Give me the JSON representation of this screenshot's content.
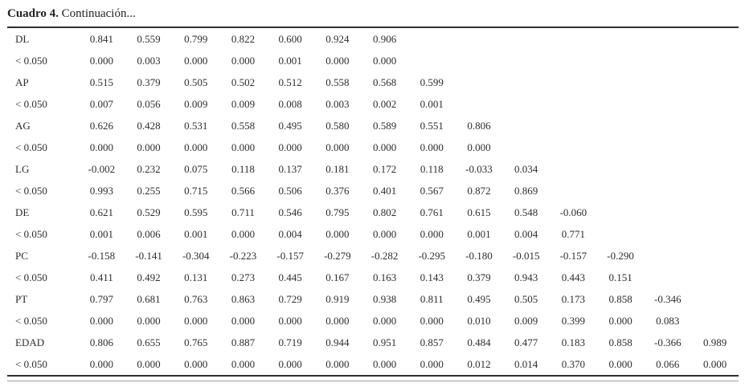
{
  "caption": {
    "bold": "Cuadro 4.",
    "rest": " Continuación..."
  },
  "table": {
    "column_count": 14,
    "rows": [
      {
        "label": "DL",
        "values": [
          "0.841",
          "0.559",
          "0.799",
          "0.822",
          "0.600",
          "0.924",
          "0.906"
        ]
      },
      {
        "label": "< 0.050",
        "values": [
          "0.000",
          "0.003",
          "0.000",
          "0.000",
          "0.001",
          "0.000",
          "0.000"
        ]
      },
      {
        "label": "AP",
        "values": [
          "0.515",
          "0.379",
          "0.505",
          "0.502",
          "0.512",
          "0.558",
          "0.568",
          "0.599"
        ]
      },
      {
        "label": "< 0.050",
        "values": [
          "0.007",
          "0.056",
          "0.009",
          "0.009",
          "0.008",
          "0.003",
          "0.002",
          "0.001"
        ]
      },
      {
        "label": "AG",
        "values": [
          "0.626",
          "0.428",
          "0.531",
          "0.558",
          "0.495",
          "0.580",
          "0.589",
          "0.551",
          "0.806"
        ]
      },
      {
        "label": "< 0.050",
        "values": [
          "0.000",
          "0.000",
          "0.000",
          "0.000",
          "0.000",
          "0.000",
          "0.000",
          "0.000",
          "0.000"
        ]
      },
      {
        "label": "LG",
        "values": [
          "-0.002",
          "0.232",
          "0.075",
          "0.118",
          "0.137",
          "0.181",
          "0.172",
          "0.118",
          "-0.033",
          "0.034"
        ]
      },
      {
        "label": "< 0.050",
        "values": [
          "0.993",
          "0.255",
          "0.715",
          "0.566",
          "0.506",
          "0.376",
          "0.401",
          "0.567",
          "0.872",
          "0.869"
        ]
      },
      {
        "label": "DE",
        "values": [
          "0.621",
          "0.529",
          "0.595",
          "0.711",
          "0.546",
          "0.795",
          "0.802",
          "0.761",
          "0.615",
          "0.548",
          "-0.060"
        ]
      },
      {
        "label": "< 0.050",
        "values": [
          "0.001",
          "0.006",
          "0.001",
          "0.000",
          "0.004",
          "0.000",
          "0.000",
          "0.000",
          "0.001",
          "0.004",
          "0.771"
        ]
      },
      {
        "label": "PC",
        "values": [
          "-0.158",
          "-0.141",
          "-0.304",
          "-0.223",
          "-0.157",
          "-0.279",
          "-0.282",
          "-0.295",
          "-0.180",
          "-0.015",
          "-0.157",
          "-0.290"
        ]
      },
      {
        "label": "< 0.050",
        "values": [
          "0.411",
          "0.492",
          "0.131",
          "0.273",
          "0.445",
          "0.167",
          "0.163",
          "0.143",
          "0.379",
          "0.943",
          "0.443",
          "0.151"
        ]
      },
      {
        "label": "PT",
        "values": [
          "0.797",
          "0.681",
          "0.763",
          "0.863",
          "0.729",
          "0.919",
          "0.938",
          "0.811",
          "0.495",
          "0.505",
          "0.173",
          "0.858",
          "-0.346"
        ]
      },
      {
        "label": "< 0.050",
        "values": [
          "0.000",
          "0.000",
          "0.000",
          "0.000",
          "0.000",
          "0.000",
          "0.000",
          "0.000",
          "0.010",
          "0.009",
          "0.399",
          "0.000",
          "0.083"
        ]
      },
      {
        "label": "EDAD",
        "values": [
          "0.806",
          "0.655",
          "0.765",
          "0.887",
          "0.719",
          "0.944",
          "0.951",
          "0.857",
          "0.484",
          "0.477",
          "0.183",
          "0.858",
          "-0.366",
          "0.989"
        ]
      },
      {
        "label": "< 0.050",
        "values": [
          "0.000",
          "0.000",
          "0.000",
          "0.000",
          "0.000",
          "0.000",
          "0.000",
          "0.000",
          "0.012",
          "0.014",
          "0.370",
          "0.000",
          "0.066",
          "0.000"
        ]
      }
    ]
  }
}
